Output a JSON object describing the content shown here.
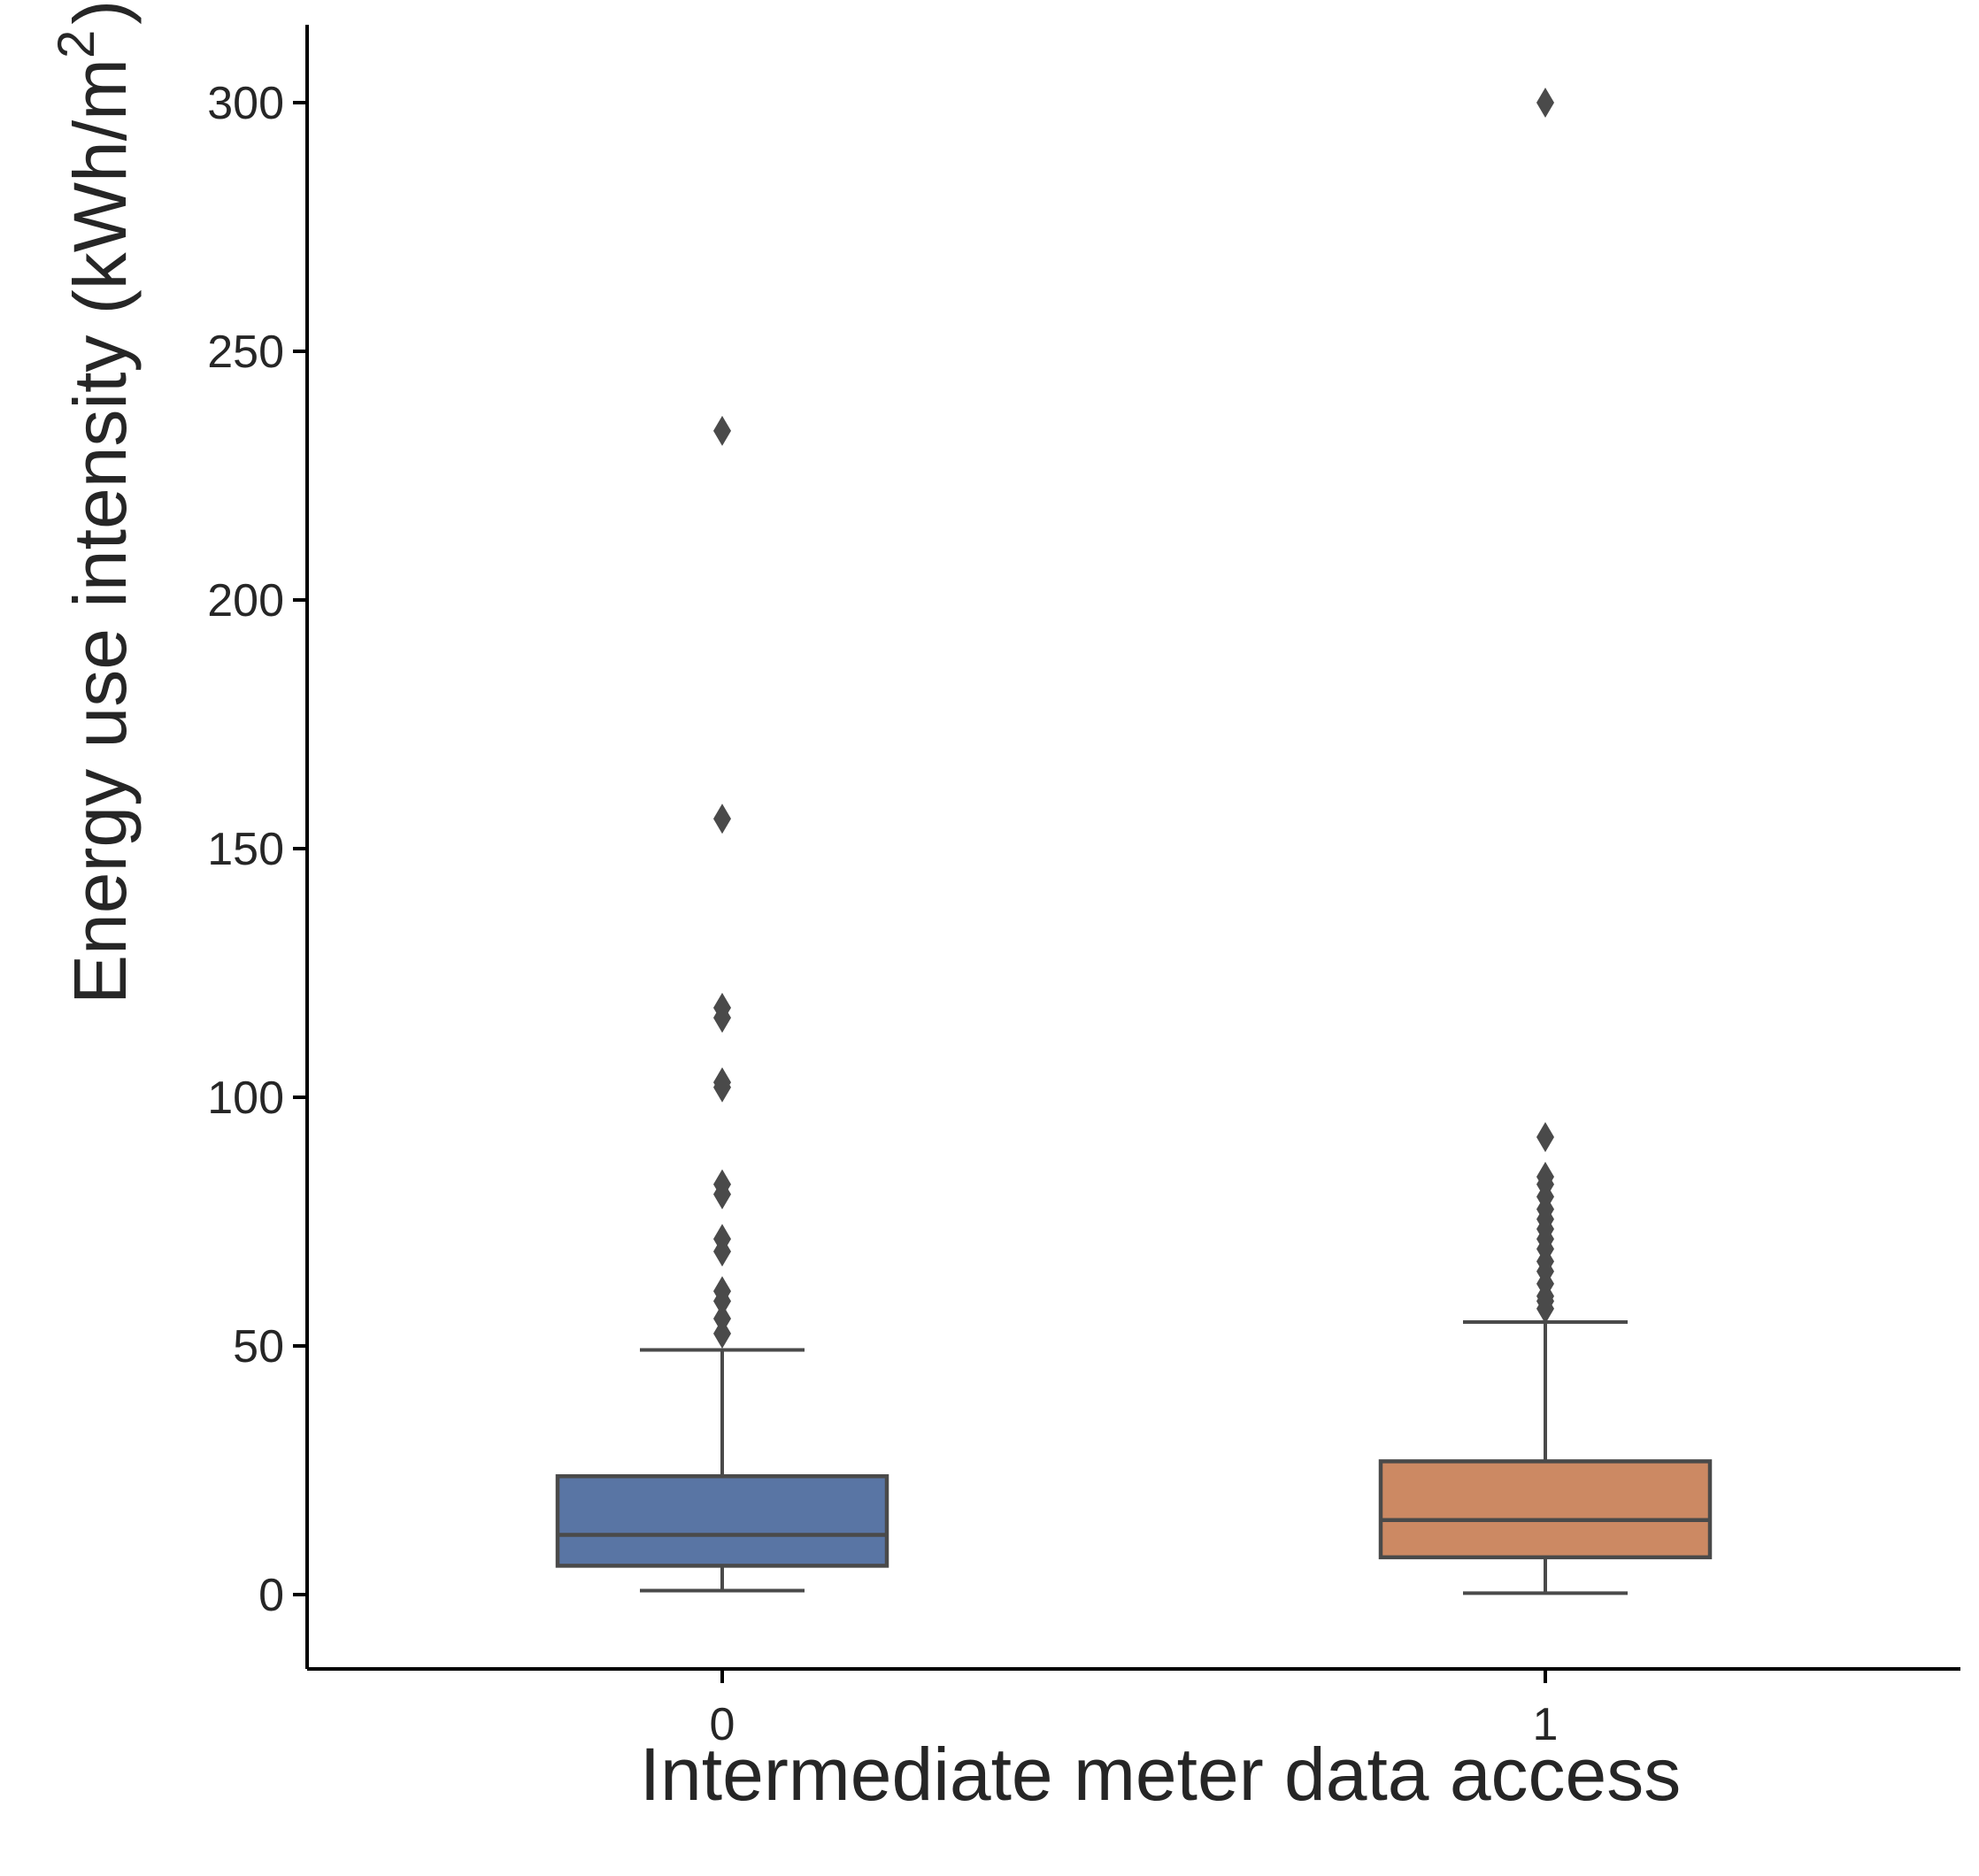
{
  "chart_data": {
    "type": "boxplot",
    "xlabel": "Intermediate meter data access",
    "ylabel_main": "Energy use intensity (kWh/m",
    "ylabel_sup": "2",
    "ylabel_end": ")",
    "ylim": [
      -15,
      315
    ],
    "yticks": [
      0,
      50,
      100,
      150,
      200,
      250,
      300
    ],
    "categories": [
      "0",
      "1"
    ],
    "grid": false,
    "boxes": [
      {
        "category": "0",
        "color": "#5975a4",
        "whisker_low": 0.8,
        "q1": 5.8,
        "median": 12.0,
        "q3": 23.8,
        "whisker_high": 49.2,
        "outliers": [
          52.5,
          55.5,
          59.0,
          61.0,
          69.0,
          71.5,
          80.5,
          82.5,
          102.0,
          103.0,
          116.0,
          118.0,
          156.0,
          234.0
        ]
      },
      {
        "category": "1",
        "color": "#cc8963",
        "whisker_low": 0.3,
        "q1": 7.5,
        "median": 15.0,
        "q3": 26.8,
        "whisker_high": 54.8,
        "outliers": [
          57.5,
          59.0,
          60.0,
          62.5,
          65.0,
          67.0,
          69.5,
          71.5,
          73.5,
          75.5,
          77.5,
          80.0,
          82.5,
          84.0,
          92.0,
          300.0
        ]
      }
    ]
  }
}
